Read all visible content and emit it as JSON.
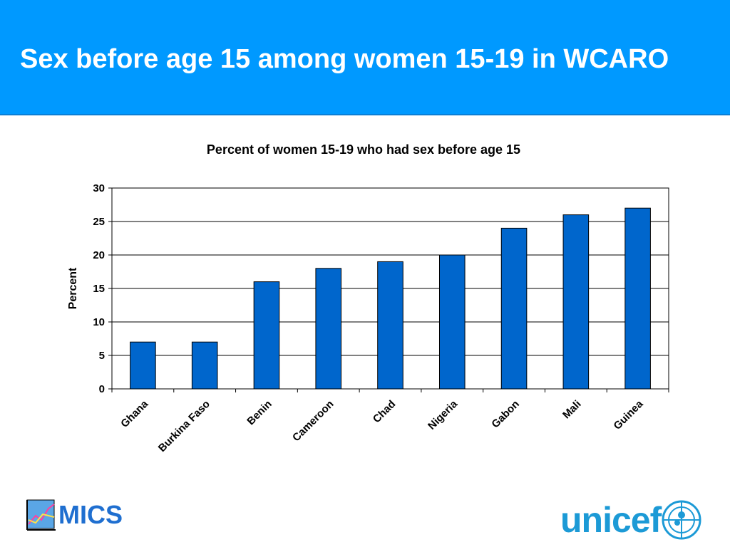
{
  "slide": {
    "title": "Sex before age 15 among women 15-19 in WCARO"
  },
  "logos": {
    "mics_label": "MICS",
    "unicef_label": "unicef"
  },
  "colors": {
    "header": "#0099ff",
    "bar": "#0066cc",
    "mics": "#1f6fd0",
    "unicef": "#1c9ad6"
  },
  "chart_data": {
    "type": "bar",
    "title": "Percent of women 15-19 who had sex before age 15",
    "xlabel": "",
    "ylabel": "Percent",
    "categories": [
      "Ghana",
      "Burkina Faso",
      "Benin",
      "Cameroon",
      "Chad",
      "Nigeria",
      "Gabon",
      "Mali",
      "Guinea"
    ],
    "values": [
      7,
      7,
      16,
      18,
      19,
      20,
      24,
      26,
      27
    ],
    "ylim": [
      0,
      30
    ],
    "yticks": [
      0,
      5,
      10,
      15,
      20,
      25,
      30
    ],
    "grid": true,
    "legend": "none"
  }
}
